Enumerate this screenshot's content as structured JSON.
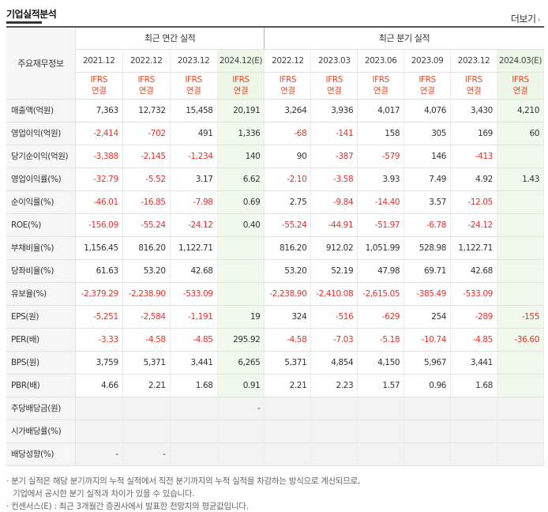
{
  "header": {
    "title": "기업실적분석",
    "more_label": "더보기"
  },
  "table": {
    "label_header": "주요재무정보",
    "annual_header": "최근 연간 실적",
    "quarter_header": "최근 분기 실적",
    "periods": [
      "2021.12",
      "2022.12",
      "2023.12",
      "2024.12(E)",
      "2022.12",
      "2023.03",
      "2023.06",
      "2023.09",
      "2023.12",
      "2024.03(E)"
    ],
    "ifrs_line1": "IFRS",
    "ifrs_line2": "연결",
    "rows": [
      {
        "label": "매출액(억원)",
        "values": [
          "7,363",
          "12,732",
          "15,458",
          "20,191",
          "3,264",
          "3,936",
          "4,017",
          "4,076",
          "3,430",
          "4,210"
        ]
      },
      {
        "label": "영업이익(억원)",
        "values": [
          "-2,414",
          "-702",
          "491",
          "1,336",
          "-68",
          "-141",
          "158",
          "305",
          "169",
          "60"
        ]
      },
      {
        "label": "당기순이익(억원)",
        "values": [
          "-3,388",
          "-2,145",
          "-1,234",
          "140",
          "90",
          "-387",
          "-579",
          "146",
          "-413",
          ""
        ]
      },
      {
        "label": "영업이익률(%)",
        "values": [
          "-32.79",
          "-5.52",
          "3.17",
          "6.62",
          "-2.10",
          "-3.58",
          "3.93",
          "7.49",
          "4.92",
          "1.43"
        ]
      },
      {
        "label": "순이익률(%)",
        "values": [
          "-46.01",
          "-16.85",
          "-7.98",
          "0.69",
          "2.75",
          "-9.84",
          "-14.40",
          "3.57",
          "-12.05",
          ""
        ]
      },
      {
        "label": "ROE(%)",
        "values": [
          "-156.09",
          "-55.24",
          "-24.12",
          "0.40",
          "-55.24",
          "-44.91",
          "-51.97",
          "-6.78",
          "-24.12",
          ""
        ]
      },
      {
        "label": "부채비율(%)",
        "values": [
          "1,156.45",
          "816.20",
          "1,122.71",
          "",
          "816.20",
          "912.02",
          "1,051.99",
          "528.98",
          "1,122.71",
          ""
        ]
      },
      {
        "label": "당좌비율(%)",
        "values": [
          "61.63",
          "53.20",
          "42.68",
          "",
          "53.20",
          "52.19",
          "47.98",
          "69.71",
          "42.68",
          ""
        ]
      },
      {
        "label": "유보율(%)",
        "values": [
          "-2,379.29",
          "-2,238.90",
          "-533.09",
          "",
          "-2,238.90",
          "-2,410.08",
          "-2,615.05",
          "-385.49",
          "-533.09",
          ""
        ]
      },
      {
        "label": "EPS(원)",
        "values": [
          "-5,251",
          "-2,584",
          "-1,191",
          "19",
          "324",
          "-516",
          "-629",
          "254",
          "-289",
          "-155"
        ]
      },
      {
        "label": "PER(배)",
        "values": [
          "-3.33",
          "-4.58",
          "-4.85",
          "295.92",
          "-4.58",
          "-7.03",
          "-5.18",
          "-10.74",
          "-4.85",
          "-36.60"
        ]
      },
      {
        "label": "BPS(원)",
        "values": [
          "3,759",
          "5,371",
          "3,441",
          "6,265",
          "5,371",
          "4,854",
          "4,150",
          "5,967",
          "3,441",
          ""
        ]
      },
      {
        "label": "PBR(배)",
        "values": [
          "4.66",
          "2.21",
          "1.68",
          "0.91",
          "2.21",
          "2.23",
          "1.57",
          "0.96",
          "1.68",
          ""
        ]
      },
      {
        "label": "주당배당금(원)",
        "values": [
          "",
          "",
          "",
          "-",
          "",
          "",
          "",
          "",
          "",
          ""
        ]
      },
      {
        "label": "시가배당률(%)",
        "values": [
          "",
          "",
          "",
          "",
          "",
          "",
          "",
          "",
          "",
          ""
        ]
      },
      {
        "label": "배당성향(%)",
        "values": [
          "-",
          "-",
          "",
          "",
          "",
          "",
          "",
          "",
          "",
          ""
        ]
      }
    ]
  },
  "notes": {
    "line1": "· 분기 실적은 해당 분기까지의 누적 실적에서 직전 분기까지의 누적 실적을 차감하는 방식으로 계산되므로,",
    "line2": "기업에서 공시한 분기 실적과 차이가 있을 수 있습니다.",
    "line3": "· 컨센서스(E) : 최근 3개월간 증권사에서 발표한 전망치의 평균값입니다."
  },
  "colors": {
    "negative": "#e0342f",
    "ifrs": "#e34c2b",
    "estimate_bg": "#f1f8ec",
    "label_bg": "#f6f6f6"
  }
}
